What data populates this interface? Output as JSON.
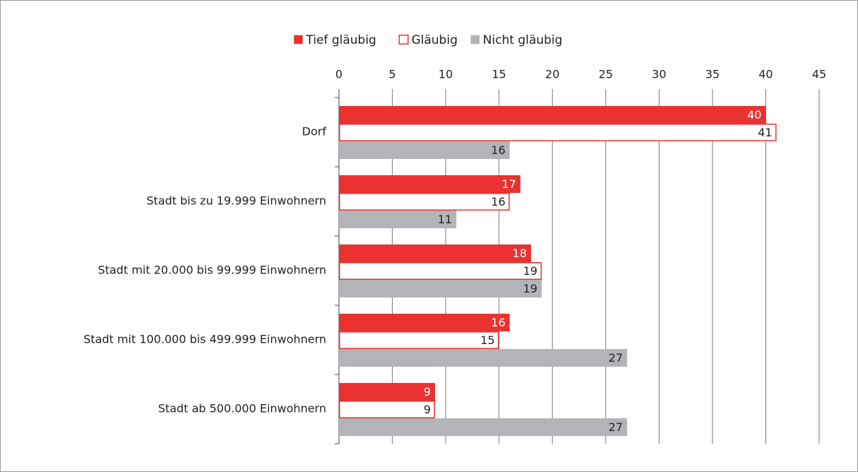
{
  "chart_data": {
    "type": "hbar",
    "categories": [
      "Dorf",
      "Stadt bis zu 19.999 Einwohnern",
      "Stadt mit 20.000 bis 99.999 Einwohnern",
      "Stadt mit 100.000 bis 499.999 Einwohnern",
      "Stadt ab 500.000 Einwohnern"
    ],
    "series": [
      {
        "name": "Tief gläubig",
        "color": "#ea3232",
        "fill": "#ea3232",
        "label_color": "#ffffff",
        "values": [
          40,
          17,
          18,
          16,
          9
        ]
      },
      {
        "name": "Gläubig",
        "color": "#ea3232",
        "fill": "#ffffff",
        "label_color": "#222222",
        "values": [
          41,
          16,
          19,
          15,
          9
        ]
      },
      {
        "name": "Nicht gläubig",
        "color": "#b3b4b7",
        "fill": "#b3b4b7",
        "label_color": "#222222",
        "values": [
          16,
          11,
          19,
          27,
          27
        ]
      }
    ],
    "xlim": [
      0,
      45
    ],
    "xticks": [
      0,
      5,
      10,
      15,
      20,
      25,
      30,
      35,
      40,
      45
    ],
    "grid": true,
    "legend": "top"
  }
}
